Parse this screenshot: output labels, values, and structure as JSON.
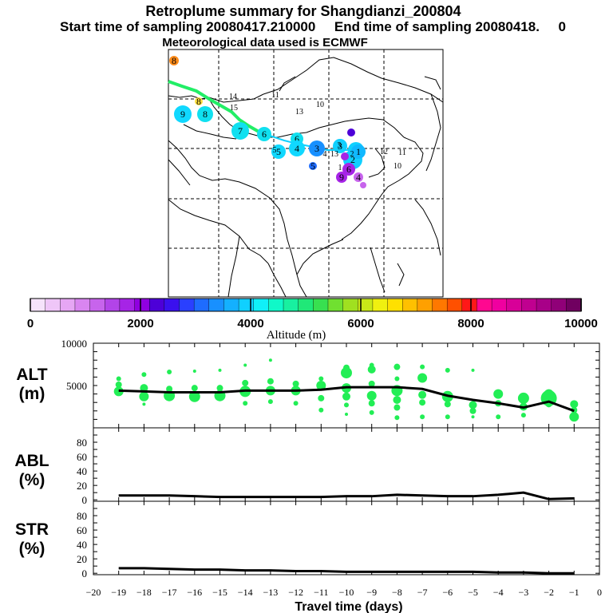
{
  "header": {
    "title": "Retroplume summary for Shangdianzi_200804",
    "subtitle": "Start time of sampling 20080417.210000     End time of sampling 20080418.     0",
    "met_line": "Meteorological data used is ECMWF"
  },
  "colors": {
    "trajectory": "#22ee66",
    "alt_bubble": "#22ee55",
    "line": "#000000"
  },
  "colorbar": {
    "title": "Altitude (m)",
    "ticks": [
      "0",
      "2000",
      "4000",
      "6000",
      "8000",
      "10000"
    ],
    "colors": [
      "#f6e3fb",
      "#efc6f8",
      "#e6a6f4",
      "#d985f0",
      "#c764ec",
      "#b244e8",
      "#a624e6",
      "#9000e0",
      "#4d00d8",
      "#3a10ee",
      "#2a40ff",
      "#1e6cff",
      "#1890ff",
      "#14b0ff",
      "#10d0ff",
      "#10f0f8",
      "#10f8c8",
      "#18f0a0",
      "#20e878",
      "#38e050",
      "#70e030",
      "#a0e020",
      "#c8e818",
      "#f0f010",
      "#ffe000",
      "#ffc000",
      "#ffa000",
      "#ff7800",
      "#ff5000",
      "#ff1818",
      "#ff0890",
      "#f000a0",
      "#d80098",
      "#c00090",
      "#a80088",
      "#900078",
      "#700060"
    ]
  },
  "map": {
    "markers": [
      {
        "label": "8",
        "color": "#ff8c1a",
        "r": 6
      },
      {
        "label": "9",
        "color": "#10d8ff",
        "r": 11
      },
      {
        "label": "8",
        "color": "#10e0f0",
        "r": 10
      },
      {
        "label": "8",
        "color": "#ffe040",
        "r": 5
      },
      {
        "label": "7",
        "color": "#10e0f0",
        "r": 11
      },
      {
        "label": "6",
        "color": "#10e0f0",
        "r": 9
      },
      {
        "label": "5",
        "color": "#10d8ff",
        "r": 9
      },
      {
        "label": "6",
        "color": "#10e0f0",
        "r": 8
      },
      {
        "label": "4",
        "color": "#10d8ff",
        "r": 10
      },
      {
        "label": "3",
        "color": "#1890ff",
        "r": 10
      },
      {
        "label": "3",
        "color": "#10d0ff",
        "r": 9
      },
      {
        "label": "2",
        "color": "#10d0ff",
        "r": 10
      },
      {
        "label": "2",
        "color": "#10d0ff",
        "r": 12
      },
      {
        "label": "1",
        "color": "#10b8ff",
        "r": 9
      },
      {
        "label": "5",
        "color": "#1e6cff",
        "r": 5
      },
      {
        "label": "6",
        "color": "#a624e6",
        "r": 8
      },
      {
        "label": "9",
        "color": "#a624e6",
        "r": 7
      },
      {
        "label": "4",
        "color": "#c764ec",
        "r": 6
      },
      {
        "label": "",
        "color": "#4d00d8",
        "r": 5
      },
      {
        "label": "",
        "color": "#a624e6",
        "r": 5
      },
      {
        "label": "",
        "color": "#c764ec",
        "r": 4
      }
    ],
    "small_labels": [
      "14",
      "15",
      "11",
      "13",
      "10",
      "13",
      "12",
      "11",
      "10",
      "1",
      "4",
      "5",
      "2",
      "3"
    ]
  },
  "chart_data": [
    {
      "type": "scatter",
      "panel": "ALT",
      "ylabel_line1": "ALT",
      "ylabel_line2": "(m)",
      "ylim": [
        0,
        10000
      ],
      "yticks": [
        "10000",
        "5000"
      ],
      "x": [
        -19,
        -18,
        -17,
        -16,
        -15,
        -14,
        -13,
        -12,
        -11,
        -10,
        -9,
        -8,
        -7,
        -6,
        -5,
        -4,
        -3,
        -2,
        -1
      ],
      "mean_line": [
        4400,
        4300,
        4200,
        4200,
        4200,
        4400,
        4400,
        4400,
        4500,
        4800,
        4800,
        4800,
        4600,
        3800,
        3300,
        2900,
        2400,
        3100,
        2000
      ],
      "points": [
        [
          -19,
          4300,
          6
        ],
        [
          -19,
          5100,
          4
        ],
        [
          -19,
          5800,
          3
        ],
        [
          -18,
          3700,
          6
        ],
        [
          -18,
          4700,
          5
        ],
        [
          -18,
          6300,
          3
        ],
        [
          -18,
          2800,
          2
        ],
        [
          -17,
          3800,
          7
        ],
        [
          -17,
          4600,
          4
        ],
        [
          -17,
          6600,
          3
        ],
        [
          -16,
          3700,
          7
        ],
        [
          -16,
          4700,
          4
        ],
        [
          -16,
          6700,
          2
        ],
        [
          -15,
          3800,
          7
        ],
        [
          -15,
          4700,
          4
        ],
        [
          -15,
          6800,
          2
        ],
        [
          -14,
          4300,
          7
        ],
        [
          -14,
          5300,
          4
        ],
        [
          -14,
          2900,
          3
        ],
        [
          -14,
          7400,
          2
        ],
        [
          -13,
          4400,
          6
        ],
        [
          -13,
          5500,
          4
        ],
        [
          -13,
          3100,
          3
        ],
        [
          -13,
          8000,
          2
        ],
        [
          -12,
          4400,
          6
        ],
        [
          -12,
          5200,
          4
        ],
        [
          -12,
          2900,
          3
        ],
        [
          -11,
          5000,
          6
        ],
        [
          -11,
          3500,
          4
        ],
        [
          -11,
          5800,
          3
        ],
        [
          -11,
          2100,
          3
        ],
        [
          -10,
          6500,
          7
        ],
        [
          -10,
          4700,
          6
        ],
        [
          -10,
          3700,
          5
        ],
        [
          -10,
          7100,
          4
        ],
        [
          -10,
          2700,
          3
        ],
        [
          -10,
          1600,
          2
        ],
        [
          -9,
          3800,
          6
        ],
        [
          -9,
          6900,
          5
        ],
        [
          -9,
          2900,
          4
        ],
        [
          -9,
          5200,
          4
        ],
        [
          -9,
          1800,
          3
        ],
        [
          -9,
          7400,
          3
        ],
        [
          -8,
          4400,
          7
        ],
        [
          -8,
          3300,
          5
        ],
        [
          -8,
          7200,
          4
        ],
        [
          -8,
          2400,
          4
        ],
        [
          -8,
          1200,
          3
        ],
        [
          -8,
          5800,
          3
        ],
        [
          -7,
          5900,
          6
        ],
        [
          -7,
          3900,
          5
        ],
        [
          -7,
          3000,
          4
        ],
        [
          -7,
          7200,
          3
        ],
        [
          -7,
          1300,
          3
        ],
        [
          -6,
          3700,
          7
        ],
        [
          -6,
          2800,
          4
        ],
        [
          -6,
          6800,
          3
        ],
        [
          -6,
          1300,
          3
        ],
        [
          -5,
          2700,
          5
        ],
        [
          -5,
          2000,
          4
        ],
        [
          -5,
          6800,
          2
        ],
        [
          -5,
          1300,
          2
        ],
        [
          -4,
          4000,
          6
        ],
        [
          -4,
          2900,
          4
        ],
        [
          -4,
          1300,
          3
        ],
        [
          -3,
          3500,
          7
        ],
        [
          -3,
          2500,
          5
        ],
        [
          -3,
          1500,
          3
        ],
        [
          -2,
          3500,
          10
        ],
        [
          -2,
          4000,
          6
        ],
        [
          -2,
          2800,
          4
        ],
        [
          -1,
          1300,
          6
        ],
        [
          -1,
          2800,
          5
        ],
        [
          -1,
          2100,
          4
        ]
      ]
    },
    {
      "type": "line",
      "panel": "ABL",
      "ylabel_line1": "ABL",
      "ylabel_line2": "(%)",
      "ylim": [
        0,
        100
      ],
      "yticks": [
        "80",
        "60",
        "40",
        "20",
        "0"
      ],
      "x": [
        -19,
        -18,
        -17,
        -16,
        -15,
        -14,
        -13,
        -12,
        -11,
        -10,
        -9,
        -8,
        -7,
        -6,
        -5,
        -4,
        -3,
        -2,
        -1
      ],
      "values": [
        6,
        6,
        6,
        5,
        4,
        4,
        4,
        4,
        4,
        5,
        5,
        7,
        6,
        5,
        5,
        7,
        10,
        1,
        2
      ]
    },
    {
      "type": "line",
      "panel": "STR",
      "ylabel_line1": "STR",
      "ylabel_line2": "(%)",
      "ylim": [
        0,
        100
      ],
      "yticks": [
        "80",
        "60",
        "40",
        "20",
        "0"
      ],
      "x": [
        -19,
        -18,
        -17,
        -16,
        -15,
        -14,
        -13,
        -12,
        -11,
        -10,
        -9,
        -8,
        -7,
        -6,
        -5,
        -4,
        -3,
        -2,
        -1
      ],
      "values": [
        7,
        7,
        6,
        5,
        5,
        4,
        4,
        3,
        3,
        2,
        2,
        2,
        2,
        2,
        2,
        1,
        1,
        0,
        0
      ]
    }
  ],
  "xaxis": {
    "label": "Travel time (days)",
    "ticks": [
      "−20",
      "−19",
      "−18",
      "−17",
      "−16",
      "−15",
      "−14",
      "−13",
      "−12",
      "−11",
      "−10",
      "−9",
      "−8",
      "−7",
      "−6",
      "−5",
      "−4",
      "−3",
      "−2",
      "−1",
      "0"
    ]
  }
}
